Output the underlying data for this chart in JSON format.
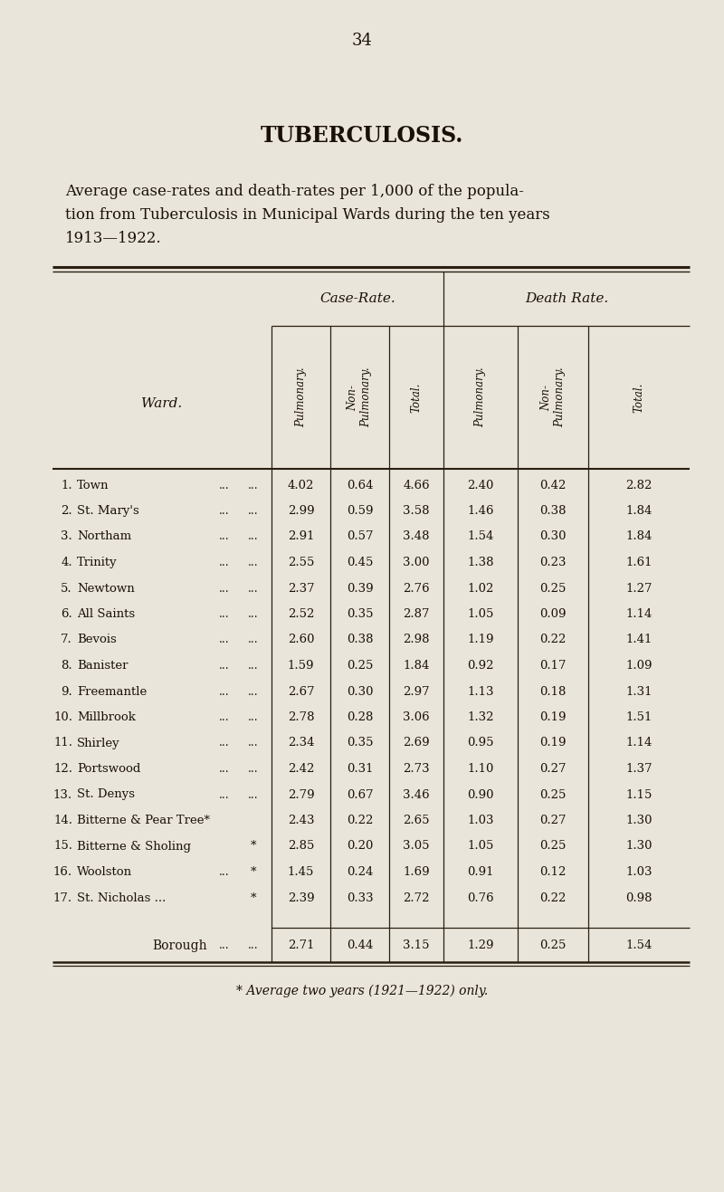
{
  "page_number": "34",
  "title": "TUBERCULOSIS.",
  "subtitle_line1": "Average case-rates and death-rates per 1,000 of the popula-",
  "subtitle_line2": "tion from Tuberculosis in Municipal Wards during the ten years",
  "subtitle_line3": "1913—1922.",
  "bg_color": "#EAE5DA",
  "text_color": "#1a1008",
  "header_case_rate": "Case-Rate.",
  "header_death_rate": "Death Rate.",
  "ward_label": "Ward.",
  "rows": [
    {
      "num": "1.",
      "name": "Town",
      "d1": "...",
      "d2": "...",
      "cr_p": "4.02",
      "cr_np": "0.64",
      "cr_t": "4.66",
      "dr_p": "2.40",
      "dr_np": "0.42",
      "dr_t": "2.82",
      "suffix": ""
    },
    {
      "num": "2.",
      "name": "St. Mary's",
      "d1": "...",
      "d2": "...",
      "cr_p": "2.99",
      "cr_np": "0.59",
      "cr_t": "3.58",
      "dr_p": "1.46",
      "dr_np": "0.38",
      "dr_t": "1.84",
      "suffix": ""
    },
    {
      "num": "3.",
      "name": "Northam",
      "d1": "...",
      "d2": "...",
      "cr_p": "2.91",
      "cr_np": "0.57",
      "cr_t": "3.48",
      "dr_p": "1.54",
      "dr_np": "0.30",
      "dr_t": "1.84",
      "suffix": ""
    },
    {
      "num": "4.",
      "name": "Trinity",
      "d1": "...",
      "d2": "...",
      "cr_p": "2.55",
      "cr_np": "0.45",
      "cr_t": "3.00",
      "dr_p": "1.38",
      "dr_np": "0.23",
      "dr_t": "1.61",
      "suffix": ""
    },
    {
      "num": "5.",
      "name": "Newtown",
      "d1": "...",
      "d2": "...",
      "cr_p": "2.37",
      "cr_np": "0.39",
      "cr_t": "2.76",
      "dr_p": "1.02",
      "dr_np": "0.25",
      "dr_t": "1.27",
      "suffix": ""
    },
    {
      "num": "6.",
      "name": "All Saints",
      "d1": "...",
      "d2": "...",
      "cr_p": "2.52",
      "cr_np": "0.35",
      "cr_t": "2.87",
      "dr_p": "1.05",
      "dr_np": "0.09",
      "dr_t": "1.14",
      "suffix": ""
    },
    {
      "num": "7.",
      "name": "Bevois",
      "d1": "...",
      "d2": "...",
      "cr_p": "2.60",
      "cr_np": "0.38",
      "cr_t": "2.98",
      "dr_p": "1.19",
      "dr_np": "0.22",
      "dr_t": "1.41",
      "suffix": ""
    },
    {
      "num": "8.",
      "name": "Banister",
      "d1": "...",
      "d2": "...",
      "cr_p": "1.59",
      "cr_np": "0.25",
      "cr_t": "1.84",
      "dr_p": "0.92",
      "dr_np": "0.17",
      "dr_t": "1.09",
      "suffix": ""
    },
    {
      "num": "9.",
      "name": "Freemantle",
      "d1": "...",
      "d2": "...",
      "cr_p": "2.67",
      "cr_np": "0.30",
      "cr_t": "2.97",
      "dr_p": "1.13",
      "dr_np": "0.18",
      "dr_t": "1.31",
      "suffix": ""
    },
    {
      "num": "10.",
      "name": "Millbrook",
      "d1": "...",
      "d2": "...",
      "cr_p": "2.78",
      "cr_np": "0.28",
      "cr_t": "3.06",
      "dr_p": "1.32",
      "dr_np": "0.19",
      "dr_t": "1.51",
      "suffix": ""
    },
    {
      "num": "11.",
      "name": "Shirley",
      "d1": "...",
      "d2": "...",
      "cr_p": "2.34",
      "cr_np": "0.35",
      "cr_t": "2.69",
      "dr_p": "0.95",
      "dr_np": "0.19",
      "dr_t": "1.14",
      "suffix": ""
    },
    {
      "num": "12.",
      "name": "Portswood",
      "d1": "...",
      "d2": "...",
      "cr_p": "2.42",
      "cr_np": "0.31",
      "cr_t": "2.73",
      "dr_p": "1.10",
      "dr_np": "0.27",
      "dr_t": "1.37",
      "suffix": ""
    },
    {
      "num": "13.",
      "name": "St. Denys",
      "d1": "...",
      "d2": "...",
      "cr_p": "2.79",
      "cr_np": "0.67",
      "cr_t": "3.46",
      "dr_p": "0.90",
      "dr_np": "0.25",
      "dr_t": "1.15",
      "suffix": ""
    },
    {
      "num": "14.",
      "name": "Bitterne & Pear Tree*",
      "d1": "",
      "d2": "",
      "cr_p": "2.43",
      "cr_np": "0.22",
      "cr_t": "2.65",
      "dr_p": "1.03",
      "dr_np": "0.27",
      "dr_t": "1.30",
      "suffix": "*"
    },
    {
      "num": "15.",
      "name": "Bitterne & Sholing",
      "d1": "",
      "d2": "*",
      "cr_p": "2.85",
      "cr_np": "0.20",
      "cr_t": "3.05",
      "dr_p": "1.05",
      "dr_np": "0.25",
      "dr_t": "1.30",
      "suffix": "*"
    },
    {
      "num": "16.",
      "name": "Woolston",
      "d1": "...",
      "d2": "*",
      "cr_p": "1.45",
      "cr_np": "0.24",
      "cr_t": "1.69",
      "dr_p": "0.91",
      "dr_np": "0.12",
      "dr_t": "1.03",
      "suffix": "*"
    },
    {
      "num": "17.",
      "name": "St. Nicholas ...",
      "d1": "",
      "d2": "*",
      "cr_p": "2.39",
      "cr_np": "0.33",
      "cr_t": "2.72",
      "dr_p": "0.76",
      "dr_np": "0.22",
      "dr_t": "0.98",
      "suffix": "*"
    }
  ],
  "borough_row": {
    "label": "Borough",
    "d1": "...",
    "d2": "...",
    "cr_p": "2.71",
    "cr_np": "0.44",
    "cr_t": "3.15",
    "dr_p": "1.29",
    "dr_np": "0.25",
    "dr_t": "1.54"
  },
  "footnote": "* Average two years (1921—1922) only."
}
